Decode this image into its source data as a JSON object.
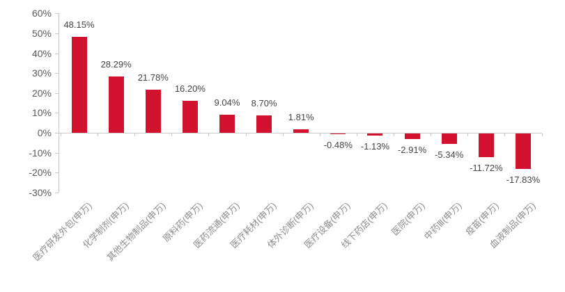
{
  "chart_data": {
    "type": "bar",
    "title": "",
    "xlabel": "",
    "ylabel": "",
    "categories": [
      "医疗研发外包(申万)",
      "化学制剂(申万)",
      "其他生物制品(申万)",
      "原料药(申万)",
      "医药流通(申万)",
      "医疗耗材(申万)",
      "体外诊断(申万)",
      "医疗设备(申万)",
      "线下药店(申万)",
      "医院(申万)",
      "中药Ⅲ(申万)",
      "疫苗(申万)",
      "血液制品(申万)"
    ],
    "values": [
      48.15,
      28.29,
      21.78,
      16.2,
      9.04,
      8.7,
      1.81,
      -0.48,
      -1.13,
      -2.91,
      -5.34,
      -11.72,
      -17.83
    ],
    "value_labels": [
      "48.15%",
      "28.29%",
      "21.78%",
      "16.20%",
      "9.04%",
      "8.70%",
      "1.81%",
      "-0.48%",
      "-1.13%",
      "-2.91%",
      "-5.34%",
      "-11.72%",
      "-17.83%"
    ],
    "ylim": [
      -30,
      60
    ],
    "y_ticks": [
      {
        "label": "60%",
        "value": 60
      },
      {
        "label": "50%",
        "value": 50
      },
      {
        "label": "40%",
        "value": 40
      },
      {
        "label": "30%",
        "value": 30
      },
      {
        "label": "20%",
        "value": 20
      },
      {
        "label": "10%",
        "value": 10
      },
      {
        "label": "0%",
        "value": 0
      },
      {
        "label": "-10%",
        "value": -10
      },
      {
        "label": "-20%",
        "value": -20
      },
      {
        "label": "-30%",
        "value": -30
      }
    ],
    "grid": false,
    "legend": "none",
    "colors": {
      "bar": "#d2112f",
      "axis_line": "#c9c9c9",
      "y_tick_label": "#595959",
      "value_label": "#454545",
      "category_label": "#8c8c8c",
      "background": "#ffffff"
    }
  }
}
